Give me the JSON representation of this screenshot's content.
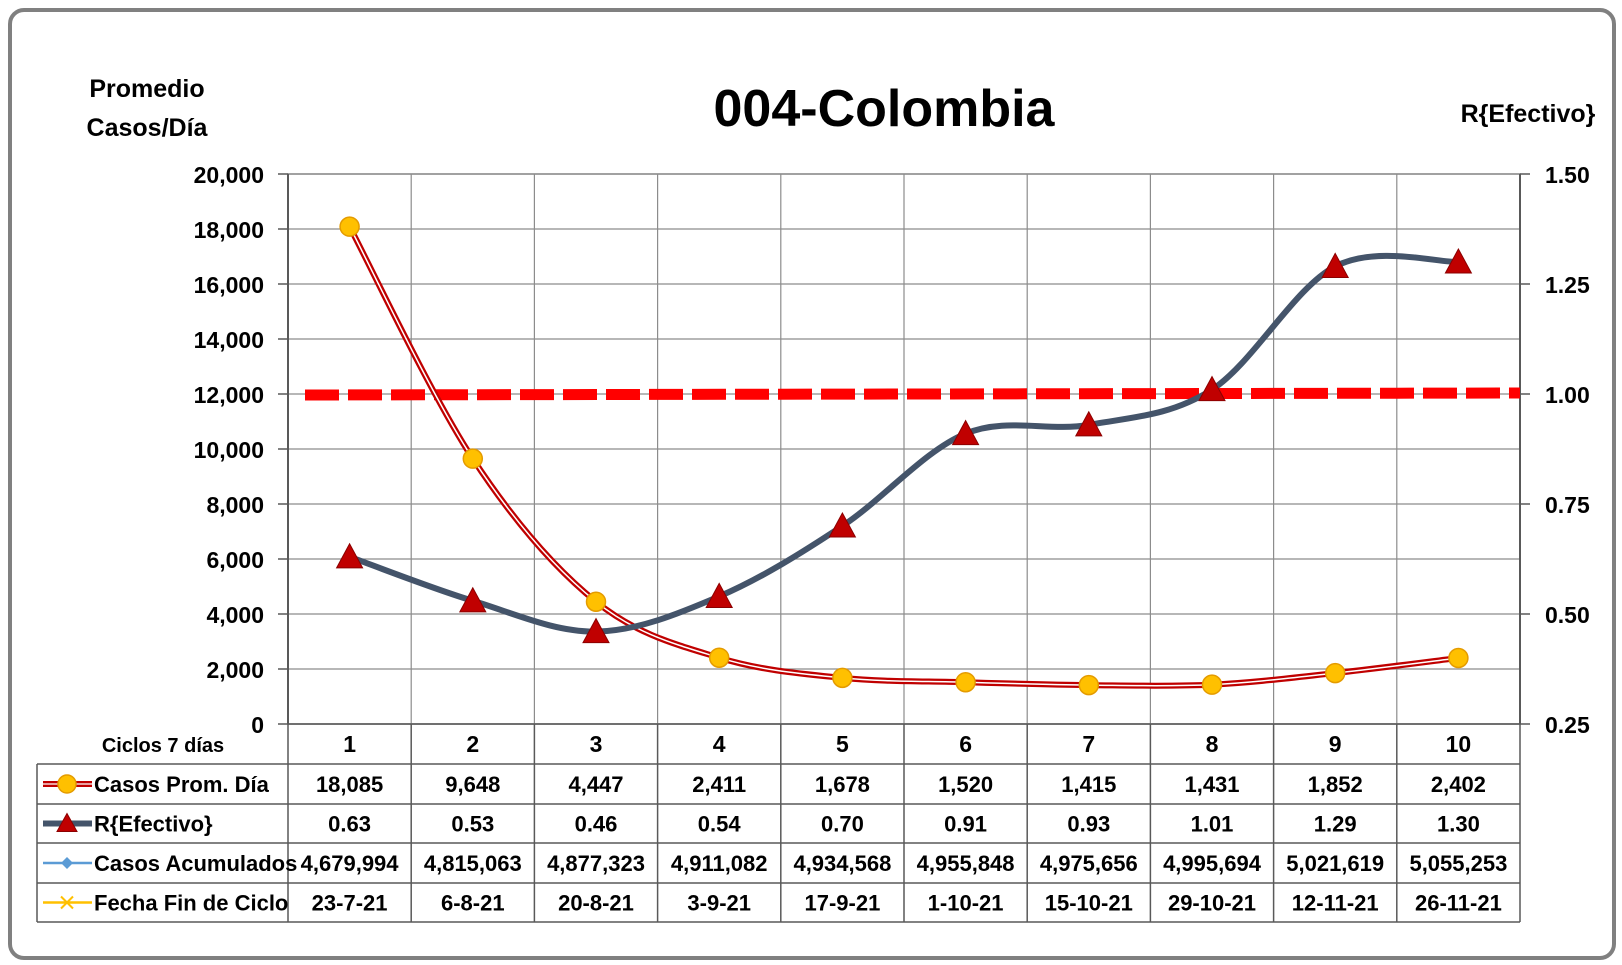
{
  "chart_data": {
    "type": "line",
    "title": "004-Colombia",
    "y_left_label": [
      "Promedio",
      "Casos/Día"
    ],
    "y_right_label": "R{Efectivo}",
    "y_left_ticks": [
      "0",
      "2,000",
      "4,000",
      "6,000",
      "8,000",
      "10,000",
      "12,000",
      "14,000",
      "16,000",
      "18,000",
      "20,000"
    ],
    "y_right_ticks": [
      "0.25",
      "0.50",
      "0.75",
      "1.00",
      "1.25",
      "1.50"
    ],
    "ylim_left": [
      0,
      20000
    ],
    "ylim_right": [
      0.25,
      1.5
    ],
    "grid": true,
    "categories": [
      "1",
      "2",
      "3",
      "4",
      "5",
      "6",
      "7",
      "8",
      "9",
      "10"
    ],
    "reference_line": {
      "axis": "right",
      "value": 1.0,
      "color": "#ff0000",
      "style": "dashed"
    },
    "series": [
      {
        "name": "Casos Prom. Día",
        "axis": "left",
        "color": "#c00000",
        "marker": "circle",
        "marker_color": "#ffc000",
        "values": [
          18085,
          9648,
          4447,
          2411,
          1678,
          1520,
          1415,
          1431,
          1852,
          2402
        ],
        "labels": [
          "18,085",
          "9,648",
          "4,447",
          "2,411",
          "1,678",
          "1,520",
          "1,415",
          "1,431",
          "1,852",
          "2,402"
        ]
      },
      {
        "name": "R{Efectivo}",
        "axis": "right",
        "color": "#44546a",
        "marker": "triangle",
        "marker_color": "#c00000",
        "values": [
          0.63,
          0.53,
          0.46,
          0.54,
          0.7,
          0.91,
          0.93,
          1.01,
          1.29,
          1.3
        ],
        "labels": [
          "0.63",
          "0.53",
          "0.46",
          "0.54",
          "0.70",
          "0.91",
          "0.93",
          "1.01",
          "1.29",
          "1.30"
        ]
      },
      {
        "name": "Casos Acumulados",
        "axis": "none",
        "color": "#5b9bd5",
        "marker": "diamond",
        "values": [
          4679994,
          4815063,
          4877323,
          4911082,
          4934568,
          4955848,
          4975656,
          4995694,
          5021619,
          5055253
        ],
        "labels": [
          "4,679,994",
          "4,815,063",
          "4,877,323",
          "4,911,082",
          "4,934,568",
          "4,955,848",
          "4,975,656",
          "4,995,694",
          "5,021,619",
          "5,055,253"
        ]
      },
      {
        "name": "Fecha Fin de Ciclo",
        "axis": "none",
        "color": "#ffc000",
        "marker": "x",
        "labels": [
          "23-7-21",
          "6-8-21",
          "20-8-21",
          "3-9-21",
          "17-9-21",
          "1-10-21",
          "15-10-21",
          "29-10-21",
          "12-11-21",
          "26-11-21"
        ]
      }
    ],
    "table_header_label": "Ciclos 7 días"
  }
}
